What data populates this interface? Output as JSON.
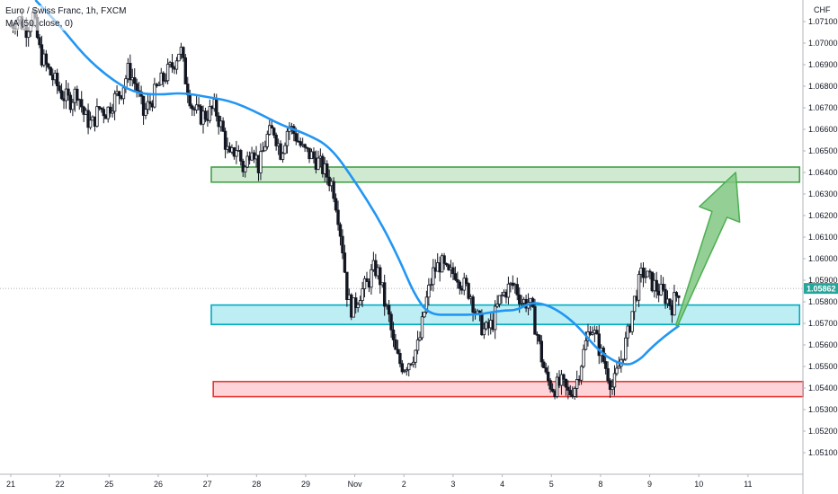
{
  "header": {
    "symbol_title": "Euro / Swiss Franc, 1h, FXCM",
    "indicator_label": "MA (50, close, 0)",
    "currency": "CHF"
  },
  "colors": {
    "ma_line": "#2196f3",
    "candle": "#131722",
    "green_zone_fill": "#c8e6c9",
    "green_zone_stroke": "#43a047",
    "blue_zone_fill": "#b2ebf2",
    "blue_zone_stroke": "#00acc1",
    "red_zone_fill": "#ffcdd2",
    "red_zone_stroke": "#e53935",
    "arrow_fill": "#81c784",
    "arrow_stroke": "#4caf50",
    "price_tag": "#26a69a",
    "grid": "#f0f3fa"
  },
  "chart_data": {
    "type": "candlestick",
    "title": "Euro / Swiss Franc, 1h, FXCM",
    "ylabel": "CHF",
    "ylim": [
      1.05,
      1.072
    ],
    "yticks": [
      1.071,
      1.07,
      1.069,
      1.068,
      1.067,
      1.066,
      1.065,
      1.064,
      1.063,
      1.062,
      1.061,
      1.06,
      1.059,
      1.058,
      1.057,
      1.056,
      1.055,
      1.054,
      1.053,
      1.052,
      1.051
    ],
    "ytick_labels": [
      "1.07100",
      "1.07000",
      "1.06900",
      "1.06800",
      "1.06700",
      "1.06600",
      "1.06500",
      "1.06400",
      "1.06300",
      "1.06200",
      "1.06100",
      "1.06000",
      "1.05900",
      "1.05800",
      "1.05700",
      "1.05600",
      "1.05500",
      "1.05400",
      "1.05300",
      "1.05200",
      "1.05100"
    ],
    "xlim": [
      0,
      16.1
    ],
    "xticks": [
      {
        "t": 0.0,
        "label": "21"
      },
      {
        "t": 1.0,
        "label": "22"
      },
      {
        "t": 2.0,
        "label": "25"
      },
      {
        "t": 3.0,
        "label": "26"
      },
      {
        "t": 4.0,
        "label": "27"
      },
      {
        "t": 5.0,
        "label": "28"
      },
      {
        "t": 6.0,
        "label": "29"
      },
      {
        "t": 7.0,
        "label": "Nov"
      },
      {
        "t": 8.0,
        "label": "2"
      },
      {
        "t": 9.0,
        "label": "3"
      },
      {
        "t": 10.0,
        "label": "4"
      },
      {
        "t": 11.0,
        "label": "5"
      },
      {
        "t": 12.0,
        "label": "8"
      },
      {
        "t": 13.0,
        "label": "9"
      },
      {
        "t": 14.0,
        "label": "10"
      },
      {
        "t": 15.0,
        "label": "11"
      }
    ],
    "last_price": 1.05862,
    "last_price_label": "1.05862",
    "close_path": [
      [
        0.0,
        1.0708
      ],
      [
        0.15,
        1.0712
      ],
      [
        0.3,
        1.0706
      ],
      [
        0.45,
        1.0713
      ],
      [
        0.6,
        1.0695
      ],
      [
        0.75,
        1.0688
      ],
      [
        0.9,
        1.0682
      ],
      [
        1.05,
        1.0676
      ],
      [
        1.2,
        1.0673
      ],
      [
        1.35,
        1.0678
      ],
      [
        1.5,
        1.0666
      ],
      [
        1.65,
        1.0662
      ],
      [
        1.8,
        1.067
      ],
      [
        1.95,
        1.0668
      ],
      [
        2.1,
        1.0674
      ],
      [
        2.25,
        1.0678
      ],
      [
        2.4,
        1.0688
      ],
      [
        2.55,
        1.068
      ],
      [
        2.7,
        1.0667
      ],
      [
        2.85,
        1.0673
      ],
      [
        3.0,
        1.068
      ],
      [
        3.15,
        1.0685
      ],
      [
        3.3,
        1.069
      ],
      [
        3.45,
        1.0698
      ],
      [
        3.55,
        1.0684
      ],
      [
        3.7,
        1.067
      ],
      [
        3.85,
        1.0666
      ],
      [
        4.0,
        1.0667
      ],
      [
        4.15,
        1.067
      ],
      [
        4.3,
        1.066
      ],
      [
        4.45,
        1.0646
      ],
      [
        4.6,
        1.0652
      ],
      [
        4.75,
        1.064
      ],
      [
        4.9,
        1.0654
      ],
      [
        5.05,
        1.0642
      ],
      [
        5.2,
        1.0656
      ],
      [
        5.35,
        1.066
      ],
      [
        5.5,
        1.0649
      ],
      [
        5.65,
        1.0662
      ],
      [
        5.8,
        1.0657
      ],
      [
        5.95,
        1.065
      ],
      [
        6.1,
        1.0648
      ],
      [
        6.25,
        1.0645
      ],
      [
        6.4,
        1.064
      ],
      [
        6.55,
        1.0634
      ],
      [
        6.65,
        1.0622
      ],
      [
        6.75,
        1.0605
      ],
      [
        6.85,
        1.0582
      ],
      [
        6.95,
        1.0576
      ],
      [
        7.1,
        1.0584
      ],
      [
        7.25,
        1.0588
      ],
      [
        7.4,
        1.0596
      ],
      [
        7.5,
        1.0592
      ],
      [
        7.6,
        1.058
      ],
      [
        7.7,
        1.0572
      ],
      [
        7.8,
        1.0558
      ],
      [
        7.9,
        1.0552
      ],
      [
        8.0,
        1.055
      ],
      [
        8.15,
        1.0554
      ],
      [
        8.3,
        1.056
      ],
      [
        8.45,
        1.058
      ],
      [
        8.6,
        1.0594
      ],
      [
        8.75,
        1.0598
      ],
      [
        8.9,
        1.0592
      ],
      [
        9.05,
        1.0594
      ],
      [
        9.2,
        1.0588
      ],
      [
        9.35,
        1.0584
      ],
      [
        9.5,
        1.0572
      ],
      [
        9.65,
        1.0566
      ],
      [
        9.8,
        1.057
      ],
      [
        9.95,
        1.0581
      ],
      [
        10.1,
        1.0586
      ],
      [
        10.25,
        1.0588
      ],
      [
        10.4,
        1.058
      ],
      [
        10.55,
        1.058
      ],
      [
        10.7,
        1.0566
      ],
      [
        10.8,
        1.0554
      ],
      [
        10.9,
        1.0544
      ],
      [
        11.05,
        1.054
      ],
      [
        11.2,
        1.0542
      ],
      [
        11.35,
        1.0537
      ],
      [
        11.5,
        1.0542
      ],
      [
        11.65,
        1.0556
      ],
      [
        11.8,
        1.057
      ],
      [
        11.95,
        1.056
      ],
      [
        12.1,
        1.055
      ],
      [
        12.25,
        1.054
      ],
      [
        12.4,
        1.0552
      ],
      [
        12.55,
        1.0564
      ],
      [
        12.7,
        1.0582
      ],
      [
        12.85,
        1.0594
      ],
      [
        13.0,
        1.059
      ],
      [
        13.15,
        1.0586
      ],
      [
        13.3,
        1.0583
      ],
      [
        13.45,
        1.0578
      ],
      [
        13.6,
        1.0586
      ]
    ],
    "ma_line": [
      [
        0.5,
        1.072
      ],
      [
        1.0,
        1.0708
      ],
      [
        1.5,
        1.0694
      ],
      [
        2.0,
        1.0684
      ],
      [
        2.5,
        1.0677
      ],
      [
        3.0,
        1.0676
      ],
      [
        3.5,
        1.0677
      ],
      [
        4.0,
        1.0675
      ],
      [
        4.5,
        1.0673
      ],
      [
        5.0,
        1.0668
      ],
      [
        5.5,
        1.0662
      ],
      [
        6.0,
        1.0658
      ],
      [
        6.5,
        1.0652
      ],
      [
        7.0,
        1.0636
      ],
      [
        7.5,
        1.0618
      ],
      [
        7.9,
        1.06
      ],
      [
        8.2,
        1.0584
      ],
      [
        8.5,
        1.0574
      ],
      [
        9.0,
        1.0574
      ],
      [
        9.5,
        1.0574
      ],
      [
        10.0,
        1.0576
      ],
      [
        10.3,
        1.0576
      ],
      [
        10.6,
        1.058
      ],
      [
        11.0,
        1.0578
      ],
      [
        11.5,
        1.057
      ],
      [
        12.0,
        1.0556
      ],
      [
        12.5,
        1.055
      ],
      [
        12.8,
        1.0553
      ],
      [
        13.0,
        1.0558
      ],
      [
        13.3,
        1.0564
      ],
      [
        13.6,
        1.0569
      ]
    ],
    "zones": [
      {
        "name": "resistance-zone",
        "color": "green",
        "t0": 4.08,
        "t1": 16.05,
        "y_low": 1.06355,
        "y_high": 1.06425
      },
      {
        "name": "support-zone",
        "color": "blue",
        "t0": 4.08,
        "t1": 16.05,
        "y_low": 1.05695,
        "y_high": 1.05785
      },
      {
        "name": "demand-zone",
        "color": "red",
        "t0": 4.12,
        "t1": 16.12,
        "y_low": 1.0536,
        "y_high": 1.0543
      }
    ],
    "arrow": {
      "t0": 13.55,
      "y0": 1.0569,
      "t1": 14.75,
      "y1": 1.064
    },
    "grid": false,
    "legend": "top-left"
  }
}
